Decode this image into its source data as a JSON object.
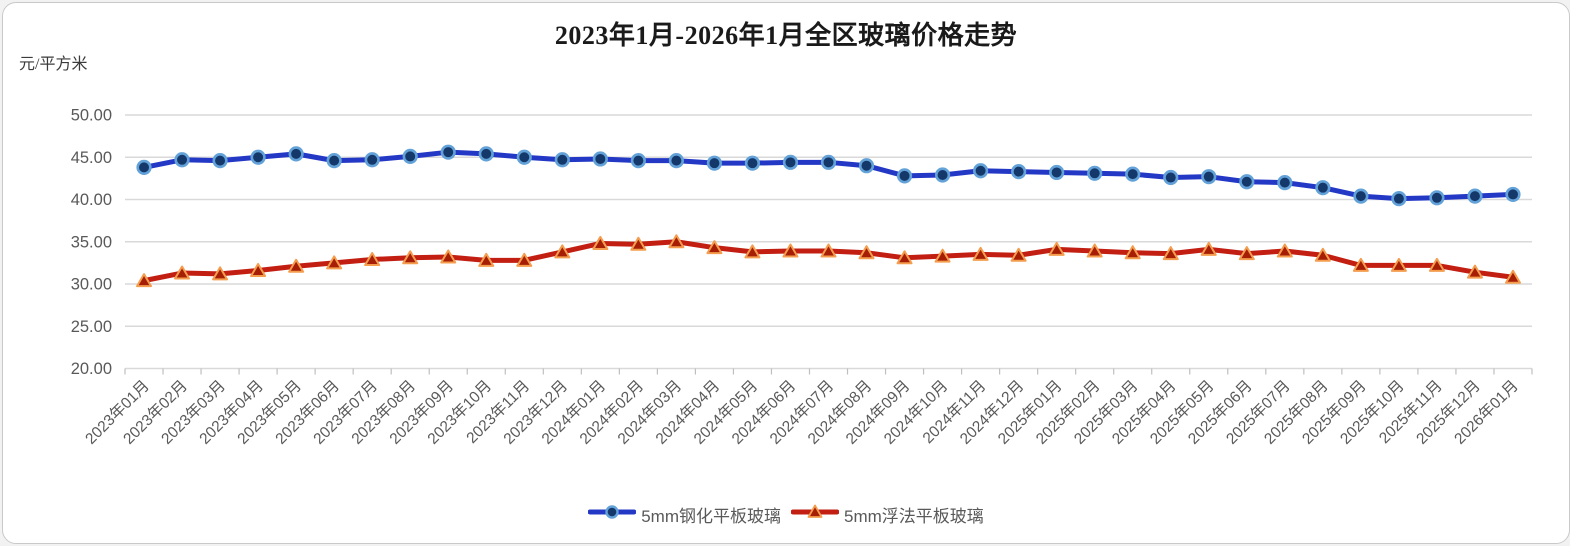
{
  "page": {
    "title": "2023年1月-2026年1月全区玻璃价格走势",
    "unit_label": "元/平方米"
  },
  "colors": {
    "grid_line": "#d9d9d9",
    "tick_mark": "#bfbfbf",
    "axis_text": "#595959",
    "title_text": "#1a1a1a"
  },
  "chart_data": {
    "type": "line",
    "title": "2023年1月-2026年1月全区玻璃价格走势",
    "xlabel": "",
    "ylabel": "元/平方米",
    "ylim": [
      20,
      50
    ],
    "ytick_labels": [
      "50.00",
      "45.00",
      "40.00",
      "35.00",
      "30.00",
      "25.00",
      "20.00"
    ],
    "grid": true,
    "legend_position": "bottom",
    "categories": [
      "2023年01月",
      "2023年02月",
      "2023年03月",
      "2023年04月",
      "2023年05月",
      "2023年06月",
      "2023年07月",
      "2023年08月",
      "2023年09月",
      "2023年10月",
      "2023年11月",
      "2023年12月",
      "2024年01月",
      "2024年02月",
      "2024年03月",
      "2024年04月",
      "2024年05月",
      "2024年06月",
      "2024年07月",
      "2024年08月",
      "2024年09月",
      "2024年10月",
      "2024年11月",
      "2024年12月",
      "2025年01月",
      "2025年02月",
      "2025年03月",
      "2025年04月",
      "2025年05月",
      "2025年06月",
      "2025年07月",
      "2025年08月",
      "2025年09月",
      "2025年10月",
      "2025年11月",
      "2025年12月",
      "2026年01月"
    ],
    "series": [
      {
        "key": "tempered-glass",
        "name": "5mm钢化平板玻璃",
        "marker": "circle",
        "line_color": "#2438c6",
        "marker_fill": "#15386b",
        "marker_stroke": "#62a2d8",
        "values": [
          43.8,
          44.7,
          44.6,
          45.0,
          45.4,
          44.6,
          44.7,
          45.1,
          45.6,
          45.4,
          45.0,
          44.7,
          44.8,
          44.6,
          44.6,
          44.3,
          44.3,
          44.4,
          44.4,
          44.0,
          42.8,
          42.9,
          43.4,
          43.3,
          43.2,
          43.1,
          43.0,
          42.6,
          42.7,
          42.1,
          42.0,
          41.4,
          40.4,
          40.1,
          40.2,
          40.4,
          40.6
        ]
      },
      {
        "key": "float-glass",
        "name": "5mm浮法平板玻璃",
        "marker": "triangle",
        "line_color": "#c21f12",
        "marker_fill": "#a51e05",
        "marker_stroke": "#f49d4e",
        "values": [
          30.4,
          31.3,
          31.2,
          31.6,
          32.1,
          32.5,
          32.9,
          33.1,
          33.2,
          32.8,
          32.8,
          33.8,
          34.8,
          34.7,
          35.0,
          34.3,
          33.8,
          33.9,
          33.9,
          33.7,
          33.1,
          33.3,
          33.5,
          33.4,
          34.1,
          33.9,
          33.7,
          33.6,
          34.1,
          33.6,
          33.9,
          33.4,
          32.2,
          32.2,
          32.2,
          31.4,
          30.8
        ]
      }
    ]
  }
}
